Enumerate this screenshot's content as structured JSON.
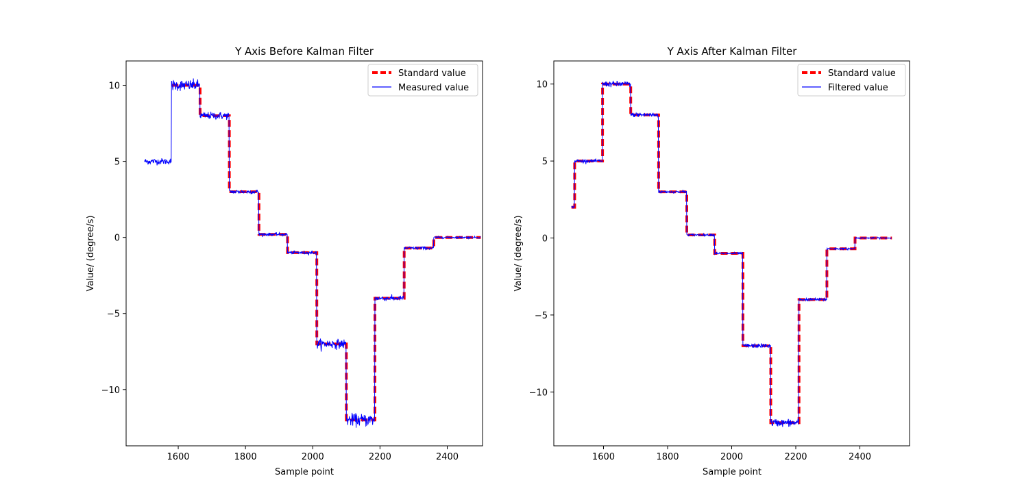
{
  "chart_data": [
    {
      "type": "line",
      "title": "Y Axis Before Kalman Filter",
      "xlabel": "Sample point",
      "ylabel": "Value/ (degree/s)",
      "xlim": [
        1445,
        2505
      ],
      "ylim": [
        -13.7,
        11.6
      ],
      "xticks": [
        1600,
        1800,
        2000,
        2200,
        2400
      ],
      "yticks": [
        -10,
        -5,
        0,
        5,
        10
      ],
      "xtick_labels": [
        "1600",
        "1800",
        "2000",
        "2200",
        "2400"
      ],
      "ytick_labels": [
        "−10",
        "−5",
        "0",
        "5",
        "10"
      ],
      "legend_position": "top-right",
      "series": [
        {
          "name": "Standard value",
          "color": "#ff0000",
          "style": "dashed",
          "steps": [
            {
              "x0": 1580,
              "x1": 1665,
              "y": 10
            },
            {
              "x0": 1665,
              "x1": 1752,
              "y": 8
            },
            {
              "x0": 1752,
              "x1": 1840,
              "y": 3
            },
            {
              "x0": 1840,
              "x1": 1925,
              "y": 0.2
            },
            {
              "x0": 1925,
              "x1": 2012,
              "y": -1
            },
            {
              "x0": 2012,
              "x1": 2100,
              "y": -7
            },
            {
              "x0": 2100,
              "x1": 2185,
              "y": -12
            },
            {
              "x0": 2185,
              "x1": 2272,
              "y": -4
            },
            {
              "x0": 2272,
              "x1": 2360,
              "y": -0.7
            },
            {
              "x0": 2360,
              "x1": 2500,
              "y": 0
            }
          ]
        },
        {
          "name": "Measured value",
          "color": "#0000ff",
          "style": "solid",
          "noise": 0.18,
          "steps": [
            {
              "x0": 1500,
              "x1": 1580,
              "y": 5,
              "noise": 0.1
            },
            {
              "x0": 1580,
              "x1": 1665,
              "y": 10,
              "noise": 0.18
            },
            {
              "x0": 1665,
              "x1": 1752,
              "y": 8,
              "noise": 0.12
            },
            {
              "x0": 1752,
              "x1": 1840,
              "y": 3,
              "noise": 0.07
            },
            {
              "x0": 1840,
              "x1": 1925,
              "y": 0.2,
              "noise": 0.05
            },
            {
              "x0": 1925,
              "x1": 2012,
              "y": -1,
              "noise": 0.05
            },
            {
              "x0": 2012,
              "x1": 2100,
              "y": -7,
              "noise": 0.15
            },
            {
              "x0": 2100,
              "x1": 2185,
              "y": -12,
              "noise": 0.2
            },
            {
              "x0": 2185,
              "x1": 2272,
              "y": -4,
              "noise": 0.08
            },
            {
              "x0": 2272,
              "x1": 2360,
              "y": -0.7,
              "noise": 0.05
            },
            {
              "x0": 2360,
              "x1": 2500,
              "y": 0,
              "noise": 0.03
            }
          ]
        }
      ]
    },
    {
      "type": "line",
      "title": "Y Axis After Kalman Filter",
      "xlabel": "Sample point",
      "ylabel": "Value/ (degree/s)",
      "xlim": [
        1445,
        2555
      ],
      "ylim": [
        -13.5,
        11.5
      ],
      "xticks": [
        1600,
        1800,
        2000,
        2200,
        2400
      ],
      "yticks": [
        -10,
        -5,
        0,
        5,
        10
      ],
      "xtick_labels": [
        "1600",
        "1800",
        "2000",
        "2200",
        "2400"
      ],
      "ytick_labels": [
        "−10",
        "−5",
        "0",
        "5",
        "10"
      ],
      "legend_position": "top-right",
      "series": [
        {
          "name": "Standard value",
          "color": "#ff0000",
          "style": "dashed",
          "steps": [
            {
              "x0": 1500,
              "x1": 1510,
              "y": 2
            },
            {
              "x0": 1510,
              "x1": 1597,
              "y": 5
            },
            {
              "x0": 1597,
              "x1": 1685,
              "y": 10
            },
            {
              "x0": 1685,
              "x1": 1772,
              "y": 8
            },
            {
              "x0": 1772,
              "x1": 1860,
              "y": 3
            },
            {
              "x0": 1860,
              "x1": 1947,
              "y": 0.2
            },
            {
              "x0": 1947,
              "x1": 2035,
              "y": -1
            },
            {
              "x0": 2035,
              "x1": 2122,
              "y": -7
            },
            {
              "x0": 2122,
              "x1": 2210,
              "y": -12
            },
            {
              "x0": 2210,
              "x1": 2297,
              "y": -4
            },
            {
              "x0": 2297,
              "x1": 2385,
              "y": -0.7
            },
            {
              "x0": 2385,
              "x1": 2500,
              "y": 0
            }
          ]
        },
        {
          "name": "Filtered value",
          "color": "#0000ff",
          "style": "solid",
          "steps": [
            {
              "x0": 1500,
              "x1": 1510,
              "y": 2,
              "noise": 0.03
            },
            {
              "x0": 1510,
              "x1": 1597,
              "y": 5,
              "noise": 0.05
            },
            {
              "x0": 1597,
              "x1": 1685,
              "y": 10,
              "noise": 0.09
            },
            {
              "x0": 1685,
              "x1": 1772,
              "y": 8,
              "noise": 0.07
            },
            {
              "x0": 1772,
              "x1": 1860,
              "y": 3,
              "noise": 0.04
            },
            {
              "x0": 1860,
              "x1": 1947,
              "y": 0.2,
              "noise": 0.03
            },
            {
              "x0": 1947,
              "x1": 2035,
              "y": -1,
              "noise": 0.03
            },
            {
              "x0": 2035,
              "x1": 2122,
              "y": -7,
              "noise": 0.07
            },
            {
              "x0": 2122,
              "x1": 2210,
              "y": -12,
              "noise": 0.12
            },
            {
              "x0": 2210,
              "x1": 2297,
              "y": -4,
              "noise": 0.05
            },
            {
              "x0": 2297,
              "x1": 2385,
              "y": -0.7,
              "noise": 0.03
            },
            {
              "x0": 2385,
              "x1": 2500,
              "y": 0,
              "noise": 0.02
            }
          ]
        }
      ]
    }
  ]
}
